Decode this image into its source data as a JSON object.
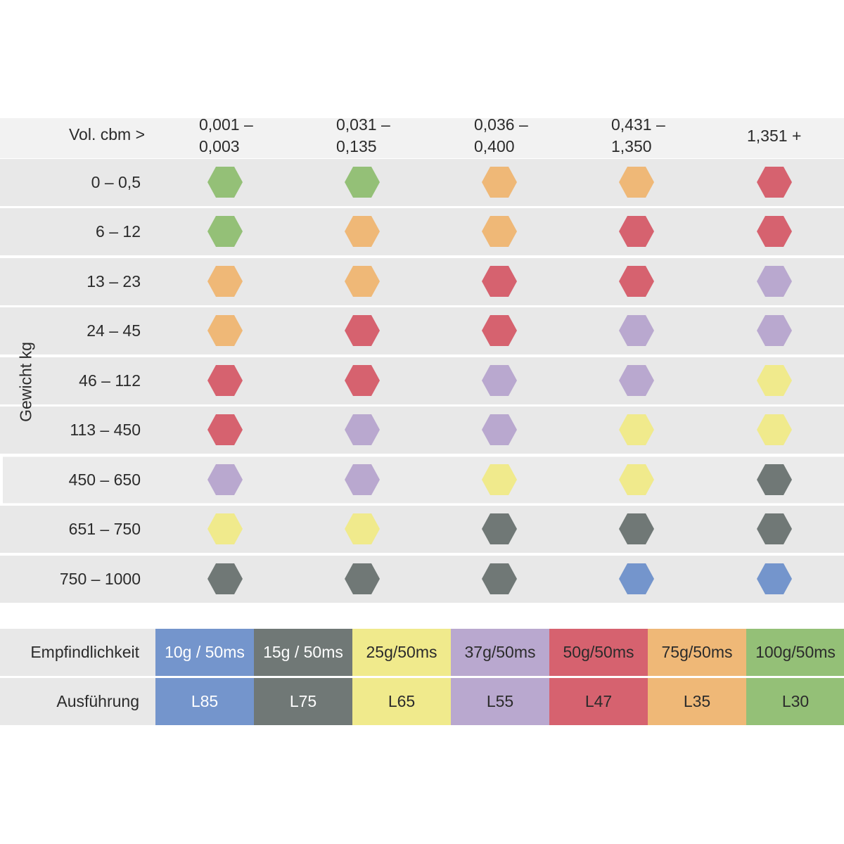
{
  "chart_data": {
    "type": "table",
    "x_axis_label": "Vol. cbm >",
    "y_axis_label": "Gewicht kg",
    "columns": [
      "0,001 –\n0,003",
      "0,031 –\n0,135",
      "0,036 –\n0,400",
      "0,431 –\n1,350",
      "1,351 +"
    ],
    "rows": [
      {
        "label": "0 – 0,5",
        "cells": [
          "L30",
          "L30",
          "L35",
          "L35",
          "L47"
        ]
      },
      {
        "label": "6 – 12",
        "cells": [
          "L30",
          "L35",
          "L35",
          "L47",
          "L47"
        ]
      },
      {
        "label": "13 – 23",
        "cells": [
          "L35",
          "L35",
          "L47",
          "L47",
          "L55"
        ]
      },
      {
        "label": "24 – 45",
        "cells": [
          "L35",
          "L47",
          "L47",
          "L55",
          "L55"
        ]
      },
      {
        "label": "46 – 112",
        "cells": [
          "L47",
          "L47",
          "L55",
          "L55",
          "L65"
        ]
      },
      {
        "label": "113 – 450",
        "cells": [
          "L47",
          "L55",
          "L55",
          "L65",
          "L65"
        ]
      },
      {
        "label": "450 – 650",
        "cells": [
          "L55",
          "L55",
          "L65",
          "L65",
          "L75"
        ]
      },
      {
        "label": "651 – 750",
        "cells": [
          "L65",
          "L65",
          "L75",
          "L75",
          "L75"
        ]
      },
      {
        "label": "750 – 1000",
        "cells": [
          "L75",
          "L75",
          "L75",
          "L85",
          "L85"
        ]
      }
    ],
    "legend": {
      "sensitivity_label": "Empfindlichkeit",
      "variant_label": "Ausführung",
      "items": [
        {
          "code": "L85",
          "sensitivity": "10g / 50ms",
          "color": "#7495cc",
          "text": "light"
        },
        {
          "code": "L75",
          "sensitivity": "15g / 50ms",
          "color": "#707876",
          "text": "light"
        },
        {
          "code": "L65",
          "sensitivity": "25g/50ms",
          "color": "#f0ea8c",
          "text": "dark"
        },
        {
          "code": "L55",
          "sensitivity": "37g/50ms",
          "color": "#b9a8cf",
          "text": "dark"
        },
        {
          "code": "L47",
          "sensitivity": "50g/50ms",
          "color": "#d6626f",
          "text": "dark"
        },
        {
          "code": "L35",
          "sensitivity": "75g/50ms",
          "color": "#efb877",
          "text": "dark"
        },
        {
          "code": "L30",
          "sensitivity": "100g/50ms",
          "color": "#94c077",
          "text": "dark"
        }
      ]
    }
  }
}
